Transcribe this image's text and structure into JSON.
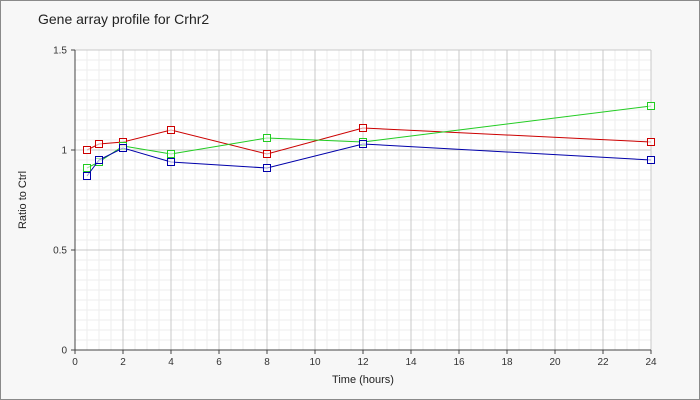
{
  "chart_data": {
    "type": "line",
    "title": "Gene array profile for Crhr2",
    "xlabel": "Time (hours)",
    "ylabel": "Ratio to Ctrl",
    "xlim": [
      0,
      24
    ],
    "ylim": [
      0,
      1.5
    ],
    "xticks": [
      "0",
      "2",
      "4",
      "6",
      "8",
      "10",
      "12",
      "14",
      "16",
      "18",
      "20",
      "22",
      "24"
    ],
    "yticks": [
      "0",
      "0.5",
      "1",
      "1.5"
    ],
    "grid": true,
    "x": [
      0.5,
      1,
      2,
      4,
      8,
      12,
      24
    ],
    "series": [
      {
        "color": "#cc0000",
        "values": [
          1.0,
          1.03,
          1.04,
          1.1,
          0.98,
          1.11,
          1.04
        ]
      },
      {
        "color": "#22cc22",
        "values": [
          0.91,
          0.94,
          1.02,
          0.98,
          1.06,
          1.04,
          1.22
        ]
      },
      {
        "color": "#0000aa",
        "values": [
          0.87,
          0.95,
          1.01,
          0.94,
          0.91,
          1.03,
          0.95
        ]
      }
    ]
  }
}
